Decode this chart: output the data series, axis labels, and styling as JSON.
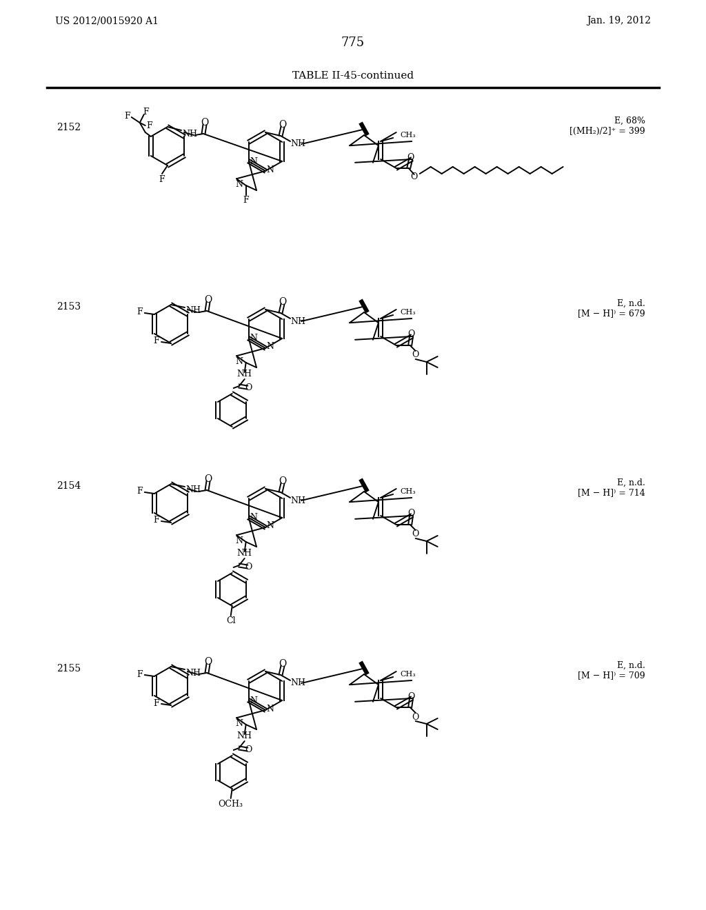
{
  "patent_number": "US 2012/0015920 A1",
  "patent_date": "Jan. 19, 2012",
  "page_number": "775",
  "table_title": "TABLE II-45-continued",
  "compounds": [
    {
      "id": "2152",
      "annotation_line1": "E, 68%",
      "annotation_line2": "[(MH₂)/2]⁺ = 399"
    },
    {
      "id": "2153",
      "annotation_line1": "E, n.d.",
      "annotation_line2": "[M − H]⁾ = 679"
    },
    {
      "id": "2154",
      "annotation_line1": "E, n.d.",
      "annotation_line2": "[M − H]⁾ = 714"
    },
    {
      "id": "2155",
      "annotation_line1": "E, n.d.",
      "annotation_line2": "[M − H]⁾ = 709"
    }
  ],
  "bg_color": "#ffffff"
}
